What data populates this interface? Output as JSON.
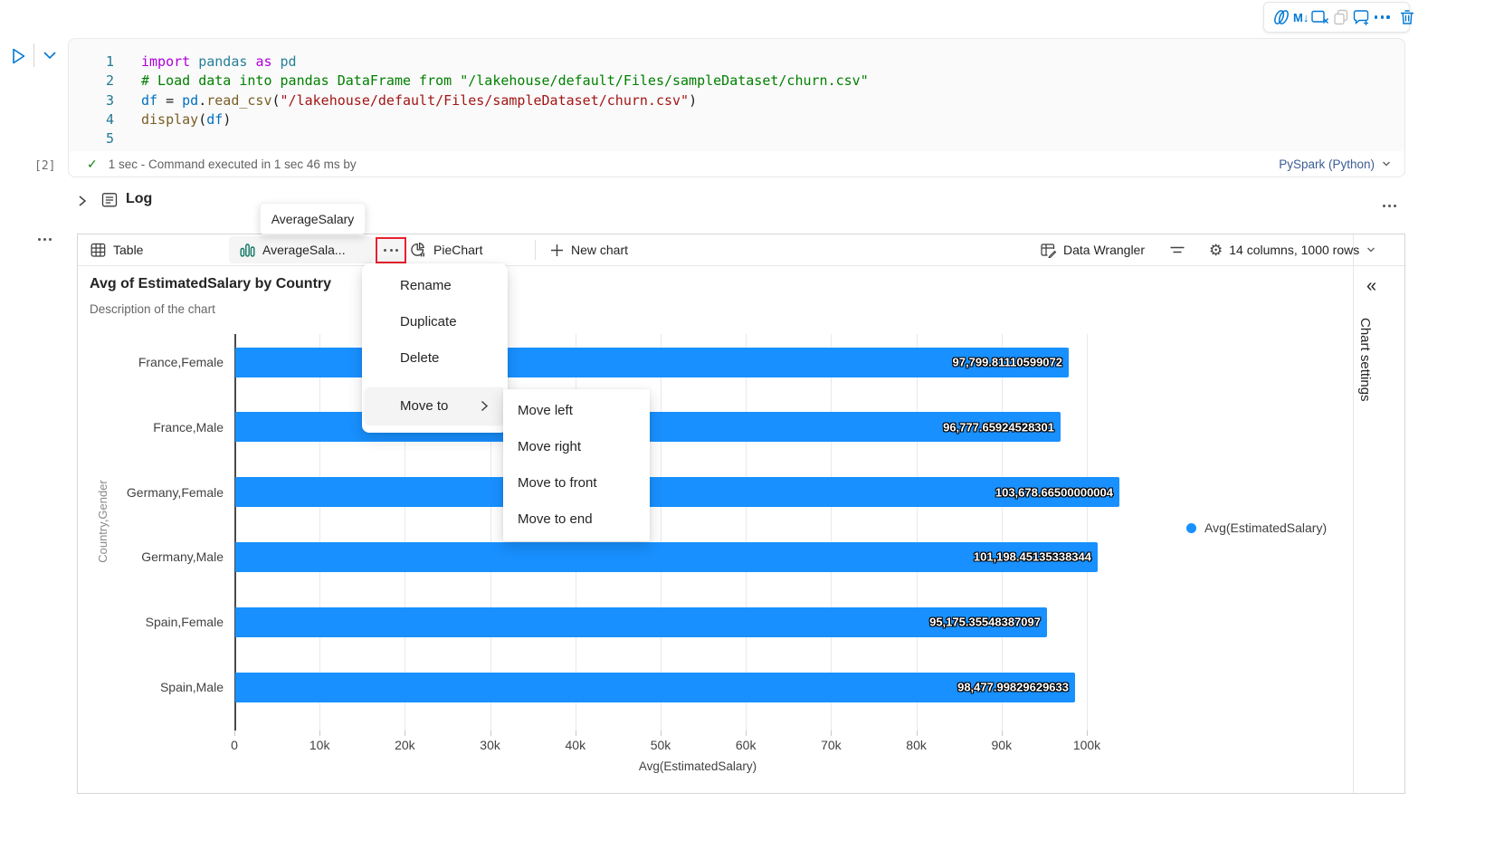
{
  "cell_toolbar": {
    "icons": [
      "copilot-icon",
      "markdown-convert-icon",
      "clear-output-icon",
      "duplicate-cell-icon",
      "add-comment-icon",
      "more-options-icon",
      "delete-cell-icon"
    ],
    "markdown_label": "M↓",
    "accent": "#0078D4"
  },
  "code_cell": {
    "lines": [
      {
        "num": "1",
        "tokens": [
          [
            "kw",
            "import"
          ],
          [
            "plain",
            " "
          ],
          [
            "type",
            "pandas"
          ],
          [
            "plain",
            " "
          ],
          [
            "kw",
            "as"
          ],
          [
            "plain",
            " "
          ],
          [
            "type",
            "pd"
          ]
        ]
      },
      {
        "num": "2",
        "tokens": [
          [
            "comment",
            "# Load data into pandas DataFrame from \"/lakehouse/default/Files/sampleDataset/churn.csv\""
          ]
        ]
      },
      {
        "num": "3",
        "tokens": [
          [
            "var",
            "df"
          ],
          [
            "plain",
            " = "
          ],
          [
            "var",
            "pd"
          ],
          [
            "plain",
            "."
          ],
          [
            "fn",
            "read_csv"
          ],
          [
            "plain",
            "("
          ],
          [
            "str",
            "\"/lakehouse/default/Files/sampleDataset/churn.csv\""
          ],
          [
            "plain",
            ")"
          ]
        ]
      },
      {
        "num": "4",
        "tokens": [
          [
            "fn",
            "display"
          ],
          [
            "plain",
            "("
          ],
          [
            "var",
            "df"
          ],
          [
            "plain",
            ")"
          ]
        ]
      },
      {
        "num": "5",
        "tokens": []
      }
    ],
    "execution_count": "[2]",
    "status_check": "✓",
    "status_text": "1 sec - Command executed in 1 sec 46 ms by",
    "language": "PySpark (Python)"
  },
  "log_section": {
    "label": "Log"
  },
  "tooltip": {
    "text": "AverageSalary"
  },
  "tab_bar": {
    "table_tab": "Table",
    "chart_tab": "AverageSala...",
    "pie_tab": "PieChart",
    "new_chart": "New chart",
    "data_wrangler": "Data Wrangler",
    "gear_glyph": "⚙",
    "summary": "14 columns, 1000 rows"
  },
  "chart": {
    "title": "Avg of EstimatedSalary by Country",
    "description": "Description of the chart",
    "settings_panel": "Chart settings",
    "collapse_glyph": "«"
  },
  "context_menu": {
    "items": [
      "Rename",
      "Duplicate",
      "Delete"
    ],
    "move_to": {
      "label": "Move to",
      "items": [
        "Move left",
        "Move right",
        "Move to front",
        "Move to end"
      ]
    }
  },
  "chart_data": {
    "type": "bar",
    "orientation": "horizontal",
    "title": "Avg of EstimatedSalary by Country",
    "subtitle": "Description of the chart",
    "categories": [
      "France,Female",
      "France,Male",
      "Germany,Female",
      "Germany,Male",
      "Spain,Female",
      "Spain,Male"
    ],
    "values": [
      97799.81110599072,
      96777.65924528301,
      103678.66500000004,
      101198.45135338344,
      95175.35548387097,
      98477.99829629633
    ],
    "value_labels": [
      "97,799.81110599072",
      "96,777.65924528301",
      "103,678.66500000004",
      "101,198.45135338344",
      "95,175.35548387097",
      "98,477.99829629633"
    ],
    "xlabel": "Avg(EstimatedSalary)",
    "ylabel": "Country,Gender",
    "x_ticks": [
      "0",
      "10k",
      "20k",
      "30k",
      "40k",
      "50k",
      "60k",
      "70k",
      "80k",
      "90k",
      "100k"
    ],
    "xlim": [
      0,
      100000
    ],
    "legend": [
      "Avg(EstimatedSalary)"
    ],
    "legend_position": "right",
    "grid": true,
    "bar_color": "#1890FF"
  }
}
